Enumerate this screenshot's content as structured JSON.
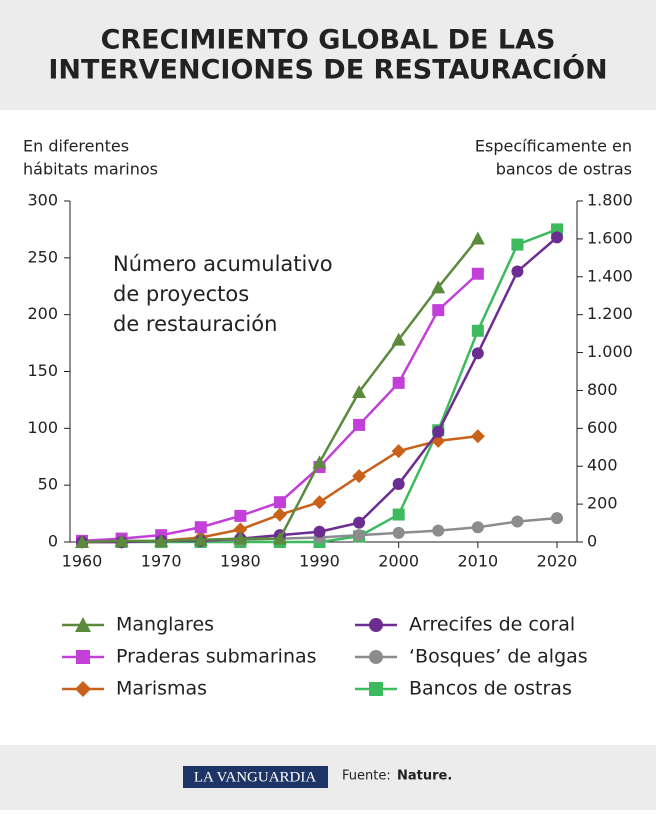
{
  "chart_data": {
    "type": "line",
    "title": [
      "CRECIMIENTO GLOBAL DE LAS",
      "INTERVENCIONES DE RESTAURACIÓN"
    ],
    "y_axis_label": [
      "En diferentes",
      "hábitats marinos"
    ],
    "y2_axis_label": [
      "Específicamente en",
      "bancos de ostras"
    ],
    "annotation": [
      "Número acumulativo",
      "de proyectos",
      "de restauración"
    ],
    "x": [
      1960,
      1965,
      1970,
      1975,
      1980,
      1985,
      1990,
      1995,
      2000,
      2005,
      2010,
      2015,
      2020
    ],
    "xlim": [
      1960,
      2020
    ],
    "xticks": [
      1960,
      1970,
      1980,
      1990,
      2000,
      2010,
      2020
    ],
    "ylim": [
      0,
      300
    ],
    "yticks": [
      0,
      50,
      100,
      150,
      200,
      250,
      300
    ],
    "y2lim": [
      0,
      1800
    ],
    "y2ticks": [
      {
        "value": 0,
        "label": "0"
      },
      {
        "value": 200,
        "label": "200"
      },
      {
        "value": 400,
        "label": "400"
      },
      {
        "value": 600,
        "label": "600"
      },
      {
        "value": 800,
        "label": "800"
      },
      {
        "value": 1000,
        "label": "1.000"
      },
      {
        "value": 1200,
        "label": "1.200"
      },
      {
        "value": 1400,
        "label": "1.400"
      },
      {
        "value": 1600,
        "label": "1.600"
      },
      {
        "value": 1800,
        "label": "1.800"
      }
    ],
    "series": [
      {
        "name": "Manglares",
        "color": "#5b8a3c",
        "marker": "triangle",
        "values": [
          0,
          1,
          1,
          2,
          3,
          3,
          70,
          132,
          178,
          224,
          267,
          null,
          null
        ]
      },
      {
        "name": "Arrecifes de coral",
        "color": "#6b2d92",
        "marker": "circle",
        "values": [
          0,
          0,
          1,
          1,
          3,
          6,
          9,
          17,
          51,
          97,
          166,
          238,
          268
        ]
      },
      {
        "name": "Praderas submarinas",
        "color": "#c23fd8",
        "marker": "square",
        "values": [
          1,
          3,
          6,
          13,
          23,
          35,
          66,
          103,
          140,
          204,
          236,
          null,
          null
        ]
      },
      {
        "name": "‘Bosques’ de algas",
        "color": "#8c8c8c",
        "marker": "circle",
        "values": [
          0,
          0,
          1,
          1,
          2,
          3,
          4,
          6,
          8,
          10,
          13,
          18,
          21
        ]
      },
      {
        "name": "Marismas",
        "color": "#c8621a",
        "marker": "diamond",
        "values": [
          0,
          0,
          1,
          4,
          11,
          24,
          35,
          58,
          80,
          89,
          93,
          null,
          null
        ]
      },
      {
        "name": "Bancos de ostras",
        "color": "#3dba5e",
        "marker": "square",
        "axis": "y2",
        "values": [
          0,
          0,
          0,
          0,
          0,
          0,
          0,
          30,
          145,
          590,
          1115,
          1570,
          1650
        ]
      }
    ],
    "footer": {
      "logo": "LA VANGUARDIA",
      "source_label": "Fuente:",
      "source": "Nature."
    }
  }
}
